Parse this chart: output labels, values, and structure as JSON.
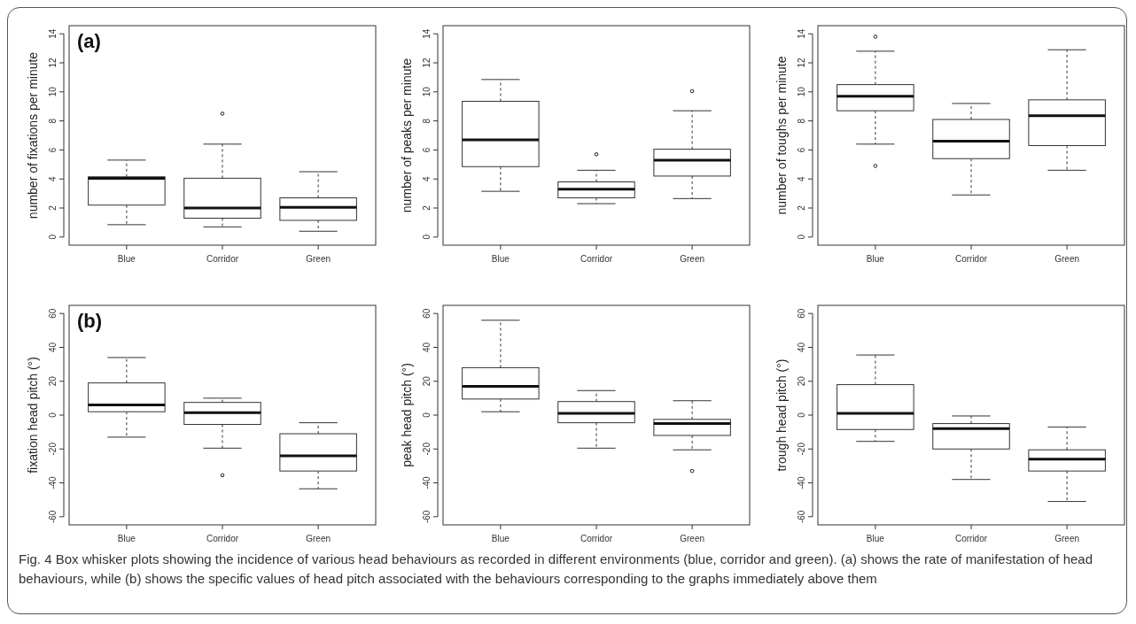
{
  "chart_data": [
    {
      "type": "box",
      "categories": [
        "Blue",
        "Corridor",
        "Green"
      ],
      "ylabel": "number of fixations per minute",
      "ylim": [
        -0.56,
        14.56
      ],
      "yticks": [
        0,
        2,
        4,
        6,
        8,
        10,
        12,
        14
      ],
      "annotations": [
        "(a)",
        "Fig. 4 Box whisker plots showing the incidence of various head behaviours as recorded in different environments (blue, corridor and green). (a) shows the rate of manifestation of head behaviours, while (b) shows the specific values of head pitch associated with the behaviours corresponding to the graphs immediately above them"
      ],
      "boxes": [
        {
          "low": 0.85,
          "q1": 2.2,
          "median": 4.05,
          "q3": 4.15,
          "high": 5.3
        },
        {
          "low": 0.7,
          "q1": 1.3,
          "median": 2.0,
          "q3": 4.05,
          "high": 6.4,
          "outliers": [
            8.5
          ]
        },
        {
          "low": 0.4,
          "q1": 1.15,
          "median": 2.05,
          "q3": 2.7,
          "high": 4.5
        }
      ]
    },
    {
      "type": "box",
      "categories": [
        "Blue",
        "Corridor",
        "Green"
      ],
      "ylabel": "number of peaks per minute",
      "ylim": [
        -0.56,
        14.56
      ],
      "yticks": [
        0,
        2,
        4,
        6,
        8,
        10,
        12,
        14
      ],
      "boxes": [
        {
          "low": 3.15,
          "q1": 4.85,
          "median": 6.7,
          "q3": 9.35,
          "high": 10.85
        },
        {
          "low": 2.3,
          "q1": 2.7,
          "median": 3.3,
          "q3": 3.8,
          "high": 4.6,
          "outliers": [
            5.7
          ]
        },
        {
          "low": 2.65,
          "q1": 4.2,
          "median": 5.3,
          "q3": 6.05,
          "high": 8.7,
          "outliers": [
            10.05
          ]
        }
      ]
    },
    {
      "type": "box",
      "categories": [
        "Blue",
        "Corridor",
        "Green"
      ],
      "ylabel": "number of toughs per minute",
      "ylim": [
        -0.56,
        14.56
      ],
      "yticks": [
        0,
        2,
        4,
        6,
        8,
        10,
        12,
        14
      ],
      "boxes": [
        {
          "low": 6.4,
          "q1": 8.7,
          "median": 9.7,
          "q3": 10.5,
          "high": 12.8,
          "outliers": [
            13.8,
            4.9
          ]
        },
        {
          "low": 2.9,
          "q1": 5.4,
          "median": 6.6,
          "q3": 8.1,
          "high": 9.2
        },
        {
          "low": 4.6,
          "q1": 6.3,
          "median": 8.35,
          "q3": 9.45,
          "high": 12.9
        }
      ]
    },
    {
      "type": "box",
      "categories": [
        "Blue",
        "Corridor",
        "Green"
      ],
      "ylabel": "fixation head pitch (°)",
      "ylim": [
        -64.8,
        64.8
      ],
      "yticks": [
        -60,
        -40,
        -20,
        0,
        20,
        40,
        60
      ],
      "annotations": [
        "(b)"
      ],
      "boxes": [
        {
          "low": -13,
          "q1": 2,
          "median": 6,
          "q3": 19,
          "high": 34
        },
        {
          "low": -19.5,
          "q1": -5.5,
          "median": 1.5,
          "q3": 7.5,
          "high": 10,
          "outliers": [
            -35.5
          ]
        },
        {
          "low": -43.5,
          "q1": -33,
          "median": -24,
          "q3": -11,
          "high": -4.5
        }
      ]
    },
    {
      "type": "box",
      "categories": [
        "Blue",
        "Corridor",
        "Green"
      ],
      "ylabel": "peak head pitch (°)",
      "ylim": [
        -64.8,
        64.8
      ],
      "yticks": [
        -60,
        -40,
        -20,
        0,
        20,
        40,
        60
      ],
      "boxes": [
        {
          "low": 2,
          "q1": 9.5,
          "median": 17,
          "q3": 28,
          "high": 56
        },
        {
          "low": -19.5,
          "q1": -4.5,
          "median": 1,
          "q3": 8,
          "high": 14.5
        },
        {
          "low": -20.5,
          "q1": -12,
          "median": -5,
          "q3": -2.5,
          "high": 8.5,
          "outliers": [
            -33
          ]
        }
      ]
    },
    {
      "type": "box",
      "categories": [
        "Blue",
        "Corridor",
        "Green"
      ],
      "ylabel": "trough head pitch (°)",
      "ylim": [
        -64.8,
        64.8
      ],
      "yticks": [
        -60,
        -40,
        -20,
        0,
        20,
        40,
        60
      ],
      "boxes": [
        {
          "low": -15.5,
          "q1": -8.5,
          "median": 1,
          "q3": 18,
          "high": 35.5
        },
        {
          "low": -38,
          "q1": -20,
          "median": -8,
          "q3": -5,
          "high": -0.5
        },
        {
          "low": -51,
          "q1": -33,
          "median": -26,
          "q3": -20.5,
          "high": -7
        }
      ]
    }
  ]
}
